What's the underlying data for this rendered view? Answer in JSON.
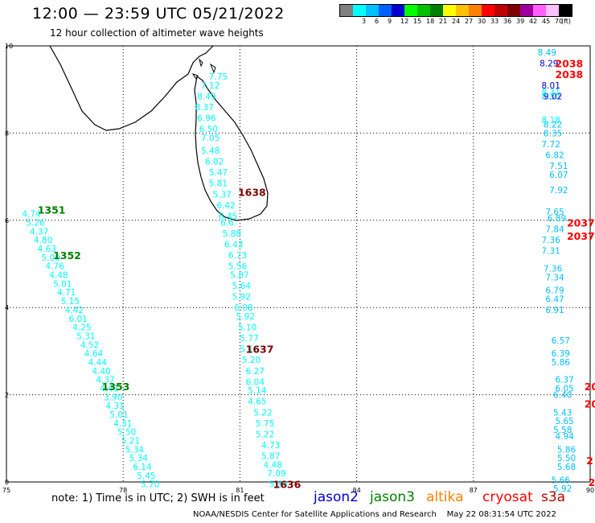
{
  "header": {
    "title": "12:00 — 23:59 UTC 05/21/2022",
    "subtitle": "12 hour collection of altimeter wave heights"
  },
  "legend": {
    "unit": "(ft)",
    "bins": [
      {
        "label": "",
        "color": "#808080"
      },
      {
        "label": "3",
        "color": "#00ffff"
      },
      {
        "label": "6",
        "color": "#00c0ff"
      },
      {
        "label": "9",
        "color": "#0060ff"
      },
      {
        "label": "12",
        "color": "#0000d0"
      },
      {
        "label": "15",
        "color": "#00ff00"
      },
      {
        "label": "18",
        "color": "#00c000"
      },
      {
        "label": "21",
        "color": "#008000"
      },
      {
        "label": "24",
        "color": "#ffff00"
      },
      {
        "label": "27",
        "color": "#ffc000"
      },
      {
        "label": "30",
        "color": "#ff8000"
      },
      {
        "label": "33",
        "color": "#ff0000"
      },
      {
        "label": "36",
        "color": "#c00000"
      },
      {
        "label": "39",
        "color": "#800000"
      },
      {
        "label": "42",
        "color": "#a000a0"
      },
      {
        "label": "45",
        "color": "#ff60ff"
      },
      {
        "label": "70",
        "color": "#ffc0ff"
      },
      {
        "label": "",
        "color": "#000000"
      }
    ]
  },
  "axes": {
    "x_ticks": [
      "75",
      "78",
      "81",
      "84",
      "87",
      "90"
    ],
    "y_ticks": [
      "0",
      "2",
      "4",
      "6",
      "8",
      "10"
    ]
  },
  "tracks": [
    {
      "color": "#00ffff",
      "points": [
        [
          80.2,
          9.3,
          "7.75"
        ],
        [
          80.0,
          9.1,
          "7.12"
        ],
        [
          79.9,
          8.85,
          "8.49"
        ],
        [
          79.85,
          8.6,
          "8.37"
        ],
        [
          79.9,
          8.35,
          "6.96"
        ],
        [
          79.95,
          8.1,
          "6.50"
        ],
        [
          80.0,
          7.9,
          "7.05"
        ],
        [
          80.0,
          7.6,
          "5.48"
        ],
        [
          80.1,
          7.35,
          "6.02"
        ],
        [
          80.2,
          7.1,
          "5.47"
        ],
        [
          80.2,
          6.85,
          "5.81"
        ],
        [
          80.3,
          6.6,
          "5.37"
        ],
        [
          80.4,
          6.35,
          "6.42"
        ],
        [
          80.45,
          6.1,
          "6.45"
        ],
        [
          80.5,
          5.95,
          "6.6"
        ],
        [
          80.55,
          5.7,
          "5.88"
        ],
        [
          80.6,
          5.45,
          "6.43"
        ],
        [
          80.7,
          5.2,
          "6.73"
        ],
        [
          80.7,
          4.95,
          "5.56"
        ],
        [
          80.75,
          4.75,
          "5.87"
        ],
        [
          80.8,
          4.5,
          "5.64"
        ],
        [
          80.8,
          4.25,
          "5.92"
        ],
        [
          80.85,
          4.0,
          "6.08"
        ],
        [
          80.9,
          3.8,
          "5.92"
        ],
        [
          80.95,
          3.55,
          "5.10"
        ],
        [
          81.0,
          3.3,
          "5.77"
        ],
        [
          81.0,
          3.05,
          "5.13"
        ],
        [
          81.05,
          2.8,
          "5.20"
        ],
        [
          81.15,
          2.55,
          "6.27"
        ],
        [
          81.15,
          2.3,
          "6.04"
        ],
        [
          81.2,
          2.1,
          "5.14"
        ],
        [
          81.2,
          1.85,
          "4.65"
        ],
        [
          81.35,
          1.6,
          "5.22"
        ],
        [
          81.4,
          1.35,
          "5.75"
        ],
        [
          81.4,
          1.1,
          "5.22"
        ],
        [
          81.55,
          0.85,
          "4.73"
        ],
        [
          81.55,
          0.6,
          "5.87"
        ],
        [
          81.6,
          0.4,
          "4.48"
        ],
        [
          81.7,
          0.2,
          "7.09"
        ],
        [
          81.75,
          -0.05,
          "5.84"
        ],
        [
          75.4,
          6.15,
          "4.74"
        ],
        [
          75.5,
          5.95,
          "5.26"
        ],
        [
          75.6,
          5.75,
          "4.37"
        ],
        [
          75.7,
          5.55,
          "4.80"
        ],
        [
          75.8,
          5.35,
          "4.63"
        ],
        [
          75.9,
          5.15,
          "5.00"
        ],
        [
          76.0,
          4.95,
          "4.76"
        ],
        [
          76.1,
          4.75,
          "4.48"
        ],
        [
          76.2,
          4.55,
          "5.01"
        ],
        [
          76.3,
          4.35,
          "4.71"
        ],
        [
          76.4,
          4.15,
          "5.15"
        ],
        [
          76.5,
          3.95,
          "4.42"
        ],
        [
          76.6,
          3.75,
          "6.01"
        ],
        [
          76.7,
          3.55,
          "4.25"
        ],
        [
          76.8,
          3.35,
          "5.31"
        ],
        [
          76.9,
          3.15,
          "4.52"
        ],
        [
          77.0,
          2.95,
          "4.64"
        ],
        [
          77.1,
          2.75,
          "4.44"
        ],
        [
          77.2,
          2.55,
          "4.40"
        ],
        [
          77.3,
          2.35,
          "4.37"
        ],
        [
          77.4,
          2.15,
          "4.41"
        ],
        [
          77.5,
          1.95,
          "3.90"
        ],
        [
          77.55,
          1.75,
          "4.31"
        ],
        [
          77.65,
          1.55,
          "5.01"
        ],
        [
          77.75,
          1.35,
          "4.31"
        ],
        [
          77.85,
          1.15,
          "5.50"
        ],
        [
          77.95,
          0.95,
          "5.21"
        ],
        [
          78.05,
          0.75,
          "5.34"
        ],
        [
          78.15,
          0.55,
          "5.34"
        ],
        [
          78.25,
          0.35,
          "6.14"
        ],
        [
          78.35,
          0.15,
          "5.45"
        ],
        [
          78.45,
          -0.05,
          "5.70"
        ]
      ]
    },
    {
      "color": "#00c0ff",
      "points": [
        [
          88.65,
          9.85,
          "8.49"
        ],
        [
          88.75,
          8.85,
          "8.30"
        ],
        [
          88.8,
          8.2,
          "8.22"
        ],
        [
          88.8,
          8.0,
          "8.35"
        ],
        [
          88.75,
          7.75,
          "7.72"
        ],
        [
          88.85,
          7.5,
          "6.82"
        ],
        [
          88.95,
          7.25,
          "7.51"
        ],
        [
          88.95,
          7.05,
          "6.07"
        ],
        [
          88.95,
          6.7,
          "7.92"
        ],
        [
          88.85,
          6.2,
          "7.65"
        ],
        [
          88.9,
          6.05,
          "6.89"
        ],
        [
          88.85,
          5.8,
          "7.84"
        ],
        [
          88.75,
          5.55,
          "7.36"
        ],
        [
          88.75,
          5.3,
          "7.31"
        ],
        [
          88.8,
          4.9,
          "7.36"
        ],
        [
          88.85,
          4.7,
          "7.34"
        ],
        [
          88.85,
          4.4,
          "6.79"
        ],
        [
          88.85,
          4.2,
          "6.47"
        ],
        [
          88.85,
          3.95,
          "6.91"
        ],
        [
          89.0,
          3.25,
          "6.57"
        ],
        [
          89.0,
          2.95,
          "6.39"
        ],
        [
          89.0,
          2.75,
          "5.86"
        ],
        [
          89.1,
          2.35,
          "6.37"
        ],
        [
          89.1,
          2.15,
          "6.05"
        ],
        [
          89.05,
          2.0,
          "6.40"
        ],
        [
          89.05,
          1.6,
          "5.43"
        ],
        [
          89.1,
          1.4,
          "5.65"
        ],
        [
          89.05,
          1.2,
          "5.58"
        ],
        [
          89.1,
          1.05,
          "4.94"
        ],
        [
          89.15,
          0.75,
          "5.86"
        ],
        [
          89.15,
          0.55,
          "5.50"
        ],
        [
          89.15,
          0.35,
          "5.68"
        ],
        [
          89.05,
          -0.15,
          "5.92"
        ],
        [
          89.0,
          0.05,
          "5.66"
        ]
      ]
    },
    {
      "color": "#0000d0",
      "points": [
        [
          88.7,
          9.6,
          "8.29"
        ],
        [
          88.75,
          9.1,
          "8.01"
        ],
        [
          88.8,
          8.85,
          "9.02"
        ]
      ]
    },
    {
      "color": "#00ffff",
      "points": [
        [
          88.75,
          8.3,
          "8.18"
        ],
        [
          88.75,
          8.95,
          "8.31"
        ]
      ]
    }
  ],
  "time_labels": [
    {
      "lon": 80.95,
      "lat": 6.65,
      "text": "1638",
      "color": "#800000"
    },
    {
      "lon": 81.15,
      "lat": 3.05,
      "text": "1637",
      "color": "#800000"
    },
    {
      "lon": 81.85,
      "lat": -0.05,
      "text": "1636",
      "color": "#800000"
    },
    {
      "lon": 75.8,
      "lat": 6.25,
      "text": "1351",
      "color": "#008000"
    },
    {
      "lon": 76.2,
      "lat": 5.2,
      "text": "1352",
      "color": "#008000"
    },
    {
      "lon": 77.45,
      "lat": 2.2,
      "text": "1353",
      "color": "#008000"
    },
    {
      "lon": 89.1,
      "lat": 9.6,
      "text": "2038",
      "color": "#ff0000"
    },
    {
      "lon": 89.1,
      "lat": 9.35,
      "text": "2038",
      "color": "#ff0000"
    },
    {
      "lon": 89.4,
      "lat": 5.95,
      "text": "2037",
      "color": "#ff0000"
    },
    {
      "lon": 89.4,
      "lat": 5.65,
      "text": "2037",
      "color": "#ff0000"
    },
    {
      "lon": 89.85,
      "lat": 2.2,
      "text": "20",
      "color": "#ff0000"
    },
    {
      "lon": 89.85,
      "lat": 1.8,
      "text": "20",
      "color": "#ff0000"
    },
    {
      "lon": 89.9,
      "lat": 0.5,
      "text": "2",
      "color": "#ff0000"
    },
    {
      "lon": 89.95,
      "lat": 0.0,
      "text": "2",
      "color": "#ff0000"
    }
  ],
  "footer": {
    "note": "note:  1) Time is in UTC; 2) SWH is in feet",
    "missions": [
      {
        "name": "jason2",
        "color": "#0000d0"
      },
      {
        "name": "jason3",
        "color": "#008000"
      },
      {
        "name": "altika",
        "color": "#ff8000"
      },
      {
        "name": "cryosat",
        "color": "#ff0000"
      },
      {
        "name": "s3a",
        "color": "#c00000"
      }
    ],
    "credit": "NOAA/NESDIS Center for Satellite Applications and Research",
    "timestamp": "May 22 08:31:54 UTC 2022"
  }
}
